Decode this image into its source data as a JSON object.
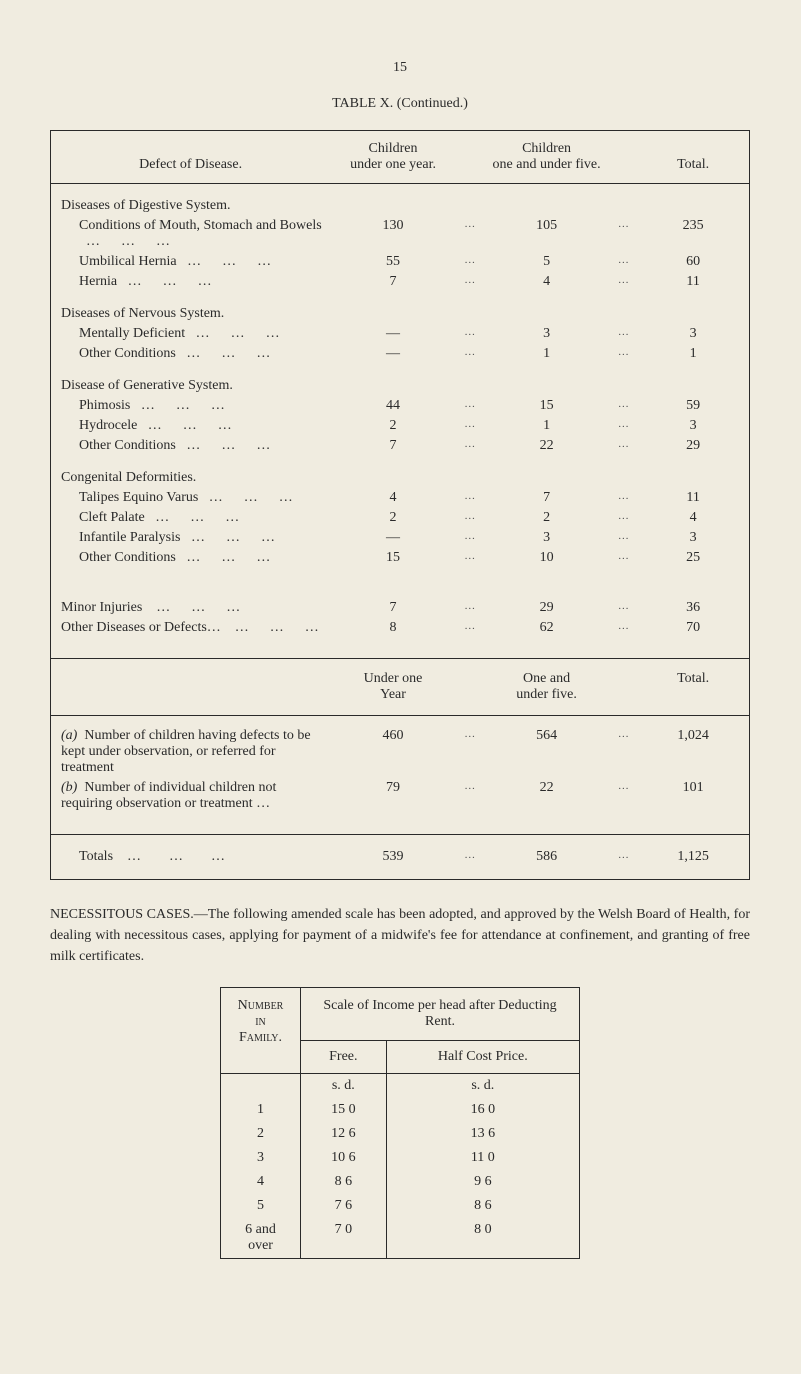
{
  "page_number": "15",
  "table_title": "TABLE X. (Continued.)",
  "headers": {
    "defect": "Defect of Disease.",
    "under_one": "Children\nunder one year.",
    "one_five": "Children\none and under five.",
    "total": "Total."
  },
  "ellipsis": "…",
  "dash": "—",
  "groups": [
    {
      "title": "Diseases of Digestive System.",
      "rows": [
        {
          "label": "Conditions of Mouth, Stomach and Bowels",
          "c1": "130",
          "c2": "105",
          "c3": "235"
        },
        {
          "label": "Umbilical Hernia",
          "c1": "55",
          "c2": "5",
          "c3": "60"
        },
        {
          "label": "Hernia",
          "c1": "7",
          "c2": "4",
          "c3": "11"
        }
      ]
    },
    {
      "title": "Diseases of Nervous System.",
      "rows": [
        {
          "label": "Mentally Deficient",
          "c1": "—",
          "c2": "3",
          "c3": "3"
        },
        {
          "label": "Other Conditions",
          "c1": "—",
          "c2": "1",
          "c3": "1"
        }
      ]
    },
    {
      "title": "Disease of Generative System.",
      "rows": [
        {
          "label": "Phimosis",
          "c1": "44",
          "c2": "15",
          "c3": "59"
        },
        {
          "label": "Hydrocele",
          "c1": "2",
          "c2": "1",
          "c3": "3"
        },
        {
          "label": "Other Conditions",
          "c1": "7",
          "c2": "22",
          "c3": "29"
        }
      ]
    },
    {
      "title": "Congenital Deformities.",
      "rows": [
        {
          "label": "Talipes Equino Varus",
          "c1": "4",
          "c2": "7",
          "c3": "11"
        },
        {
          "label": "Cleft Palate",
          "c1": "2",
          "c2": "2",
          "c3": "4"
        },
        {
          "label": "Infantile Paralysis",
          "c1": "—",
          "c2": "3",
          "c3": "3"
        },
        {
          "label": "Other Conditions",
          "c1": "15",
          "c2": "10",
          "c3": "25"
        }
      ]
    }
  ],
  "loose_rows": [
    {
      "label": "Minor Injuries",
      "c1": "7",
      "c2": "29",
      "c3": "36"
    },
    {
      "label": "Other Diseases or Defects…",
      "c1": "8",
      "c2": "62",
      "c3": "70"
    }
  ],
  "sub_headers": {
    "under_one": "Under one\nYear",
    "one_five": "One and\nunder five.",
    "total": "Total."
  },
  "ab_rows": [
    {
      "tag": "(a)",
      "label": "Number of children having defects to be kept under observation, or referred for treatment",
      "c1": "460",
      "c2": "564",
      "c3": "1,024"
    },
    {
      "tag": "(b)",
      "label": "Number of individual children not requiring observation or treatment …",
      "c1": "79",
      "c2": "22",
      "c3": "101"
    }
  ],
  "totals": {
    "label": "Totals",
    "c1": "539",
    "c2": "586",
    "c3": "1,125"
  },
  "body_text": "NECESSITOUS CASES.—The following amended scale has been adopted, and approved by the Welsh Board of Health, for dealing with necessitous cases, applying for payment of a midwife's fee for attendance at confinement, and granting of free milk certificates.",
  "rent_table": {
    "left_head_1": "Number",
    "left_head_2": "in",
    "left_head_3": "Family.",
    "top_head": "Scale of Income per head after Deducting Rent.",
    "free": "Free.",
    "half": "Half Cost Price.",
    "sd": "s. d.",
    "rows": [
      {
        "n": "1",
        "free": "15 0",
        "half": "16 0"
      },
      {
        "n": "2",
        "free": "12 6",
        "half": "13 6"
      },
      {
        "n": "3",
        "free": "10 6",
        "half": "11 0"
      },
      {
        "n": "4",
        "free": "8 6",
        "half": "9 6"
      },
      {
        "n": "5",
        "free": "7 6",
        "half": "8 6"
      },
      {
        "n": "6 and over",
        "free": "7 0",
        "half": "8 0"
      }
    ]
  }
}
